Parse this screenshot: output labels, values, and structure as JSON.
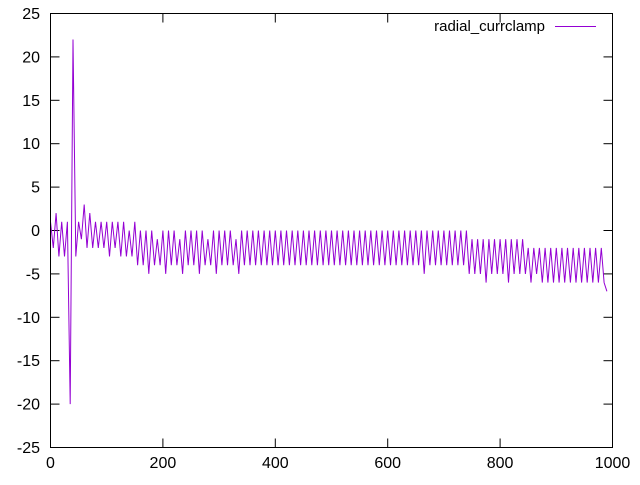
{
  "chart_data": {
    "type": "line",
    "title": "",
    "xlabel": "",
    "ylabel": "",
    "xlim": [
      0,
      1000
    ],
    "ylim": [
      -25,
      25
    ],
    "xticks": [
      0,
      200,
      400,
      600,
      800,
      1000
    ],
    "yticks": [
      -25,
      -20,
      -15,
      -10,
      -5,
      0,
      5,
      10,
      15,
      20,
      25
    ],
    "grid": false,
    "legend_position": "top-right",
    "x_start": 0,
    "x_step": 5,
    "series": [
      {
        "name": "radial_currclamp",
        "color": "#9400d3",
        "values": [
          1,
          -2,
          2,
          -3,
          1,
          -3,
          1,
          -20,
          22,
          -3,
          1,
          -1,
          3,
          -2,
          2,
          -2,
          1,
          -2,
          1,
          -2,
          1,
          -3,
          1,
          -2,
          1,
          -3,
          1,
          -3,
          0,
          -3,
          1,
          -4,
          0,
          -4,
          0,
          -5,
          0,
          -4,
          -1,
          -4,
          0,
          -5,
          0,
          -4,
          0,
          -4,
          -1,
          -5,
          0,
          -4,
          0,
          -4,
          0,
          -5,
          0,
          -4,
          -1,
          -4,
          0,
          -5,
          0,
          -4,
          0,
          -4,
          0,
          -4,
          -1,
          -5,
          0,
          -4,
          0,
          -4,
          0,
          -4,
          0,
          -4,
          0,
          -4,
          0,
          -4,
          0,
          -4,
          0,
          -4,
          0,
          -4,
          0,
          -4,
          0,
          -4,
          0,
          -4,
          0,
          -4,
          0,
          -4,
          0,
          -4,
          0,
          -4,
          0,
          -4,
          0,
          -4,
          0,
          -4,
          0,
          -4,
          0,
          -4,
          0,
          -4,
          0,
          -4,
          0,
          -4,
          0,
          -4,
          0,
          -4,
          0,
          -4,
          0,
          -4,
          0,
          -4,
          0,
          -4,
          0,
          -4,
          0,
          -4,
          0,
          -5,
          0,
          -4,
          0,
          -4,
          0,
          -4,
          0,
          -4,
          0,
          -4,
          0,
          -4,
          0,
          -4,
          0,
          -5,
          -1,
          -5,
          -1,
          -5,
          -1,
          -6,
          -1,
          -5,
          -1,
          -5,
          -1,
          -5,
          -1,
          -6,
          -1,
          -5,
          -1,
          -5,
          -1,
          -5,
          -2,
          -6,
          -2,
          -5,
          -2,
          -6,
          -2,
          -6,
          -2,
          -6,
          -2,
          -6,
          -2,
          -6,
          -2,
          -6,
          -2,
          -6,
          -2,
          -6,
          -2,
          -6,
          -2,
          -6,
          -2,
          -6,
          -2,
          -6,
          -7
        ]
      }
    ]
  }
}
